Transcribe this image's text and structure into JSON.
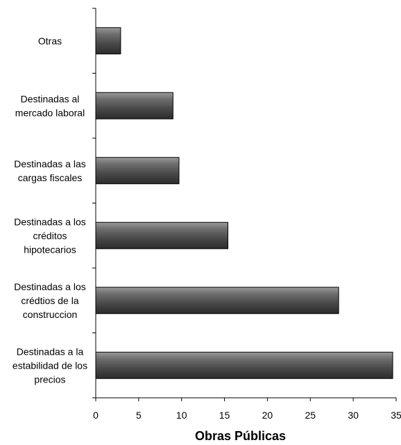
{
  "chart_data": {
    "type": "bar",
    "orientation": "horizontal",
    "categories": [
      [
        "Otras"
      ],
      [
        "Destinadas al",
        "mercado laboral"
      ],
      [
        "Destinadas a las",
        "cargas fiscales"
      ],
      [
        "Destinadas a los",
        "créditos",
        "hipotecarios"
      ],
      [
        "Destinadas a los",
        "crédtios de la",
        "construccion"
      ],
      [
        "Destinadas a la",
        "estabilidad de los",
        "precios"
      ]
    ],
    "values": [
      2.9,
      9.0,
      9.7,
      15.4,
      28.3,
      34.6
    ],
    "title": "",
    "xlabel": "Obras Públicas",
    "ylabel": "",
    "xlim": [
      0,
      35
    ],
    "xticks": [
      0,
      5,
      10,
      15,
      20,
      25,
      30,
      35
    ],
    "grid": false,
    "legend": "none",
    "bar_color": "#5a5a5a"
  }
}
